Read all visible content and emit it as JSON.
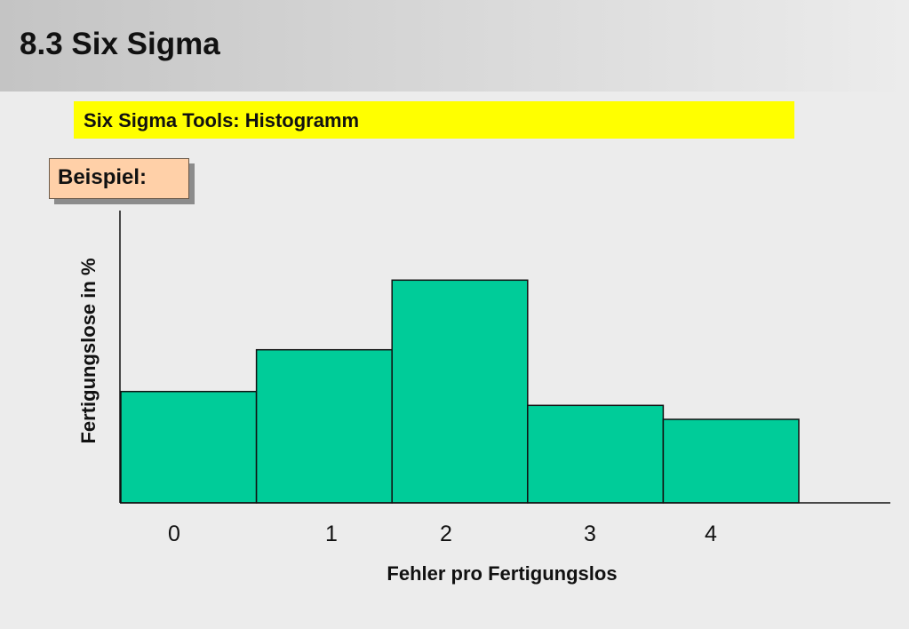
{
  "header": {
    "title": "8.3 Six Sigma"
  },
  "subtitle": {
    "text": "Six Sigma Tools: Histogramm"
  },
  "example_label": "Beispiel:",
  "colors": {
    "bar_fill": "#00cc99",
    "highlight": "#ffff00",
    "example_box": "#ffd0a8"
  },
  "chart_data": {
    "type": "bar",
    "title": "",
    "xlabel": "Fehler pro Fertigungslos",
    "ylabel": "Fertigungslose in %",
    "categories": [
      "0",
      "1",
      "2",
      "3",
      "4"
    ],
    "values": [
      16,
      22,
      32,
      14,
      12
    ],
    "ylim": [
      0,
      42
    ],
    "y_ticks_shown": false,
    "grid": false,
    "legend": "none"
  }
}
